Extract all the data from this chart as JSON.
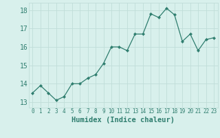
{
  "x": [
    0,
    1,
    2,
    3,
    4,
    5,
    6,
    7,
    8,
    9,
    10,
    11,
    12,
    13,
    14,
    15,
    16,
    17,
    18,
    19,
    20,
    21,
    22,
    23
  ],
  "y": [
    13.5,
    13.9,
    13.5,
    13.1,
    13.3,
    14.0,
    14.0,
    14.3,
    14.5,
    15.1,
    16.0,
    16.0,
    15.8,
    16.7,
    16.7,
    17.8,
    17.6,
    18.1,
    17.75,
    16.3,
    16.7,
    15.8,
    16.4,
    16.5
  ],
  "xlim": [
    -0.5,
    23.5
  ],
  "ylim": [
    12.7,
    18.4
  ],
  "yticks": [
    13,
    14,
    15,
    16,
    17,
    18
  ],
  "xticks": [
    0,
    1,
    2,
    3,
    4,
    5,
    6,
    7,
    8,
    9,
    10,
    11,
    12,
    13,
    14,
    15,
    16,
    17,
    18,
    19,
    20,
    21,
    22,
    23
  ],
  "xlabel": "Humidex (Indice chaleur)",
  "line_color": "#2e7d6e",
  "marker": "D",
  "marker_size": 2.2,
  "bg_color": "#d8f0ec",
  "grid_color": "#c0ddd8",
  "label_color": "#2e7d6e",
  "font_family": "monospace",
  "xlabel_fontsize": 7.5,
  "ytick_fontsize": 7,
  "xtick_fontsize": 5.5
}
